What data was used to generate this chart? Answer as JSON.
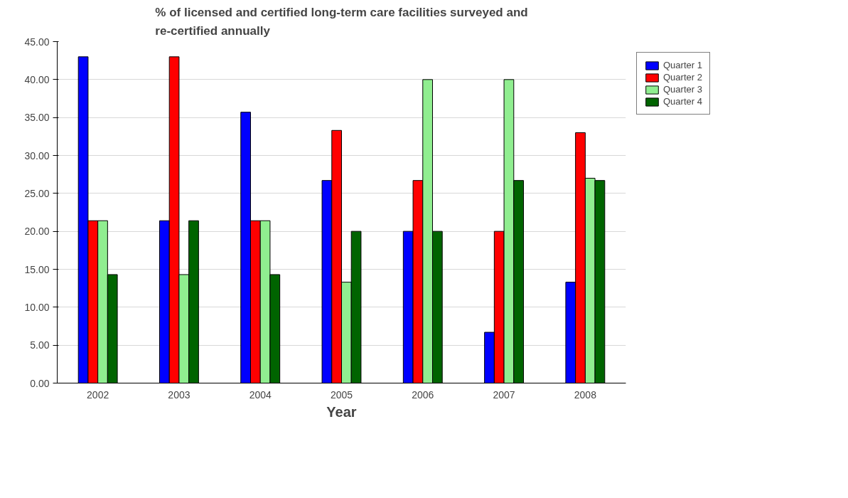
{
  "chart_data": {
    "type": "bar",
    "title": "% of licensed and certified long-term care facilities surveyed and\nre-certified annually",
    "xlabel": "Year",
    "categories": [
      "2002",
      "2003",
      "2004",
      "2005",
      "2006",
      "2007",
      "2008"
    ],
    "series": [
      {
        "name": "Quarter 1",
        "color": "#0000ff",
        "values": [
          43.0,
          21.4,
          35.7,
          26.7,
          20.0,
          6.7,
          13.3
        ]
      },
      {
        "name": "Quarter 2",
        "color": "#ff0000",
        "values": [
          21.4,
          43.0,
          21.4,
          33.3,
          26.7,
          20.0,
          33.0
        ]
      },
      {
        "name": "Quarter 3",
        "color": "#90ee90",
        "values": [
          21.4,
          14.3,
          21.4,
          13.3,
          40.0,
          40.0,
          27.0
        ]
      },
      {
        "name": "Quarter 4",
        "color": "#006400",
        "values": [
          14.3,
          21.4,
          14.3,
          20.0,
          20.0,
          26.7,
          26.7
        ]
      }
    ],
    "ylim": [
      0,
      45
    ],
    "yticks": [
      {
        "value": 0,
        "label": "0.00"
      },
      {
        "value": 5,
        "label": "5.00"
      },
      {
        "value": 10,
        "label": "10.00"
      },
      {
        "value": 15,
        "label": "15.00"
      },
      {
        "value": 20,
        "label": "20.00"
      },
      {
        "value": 25,
        "label": "25.00"
      },
      {
        "value": 30,
        "label": "30.00"
      },
      {
        "value": 35,
        "label": "35.00"
      },
      {
        "value": 40,
        "label": "40.00"
      },
      {
        "value": 45,
        "label": "45.00"
      }
    ],
    "grid": "y",
    "legend": "top right"
  }
}
